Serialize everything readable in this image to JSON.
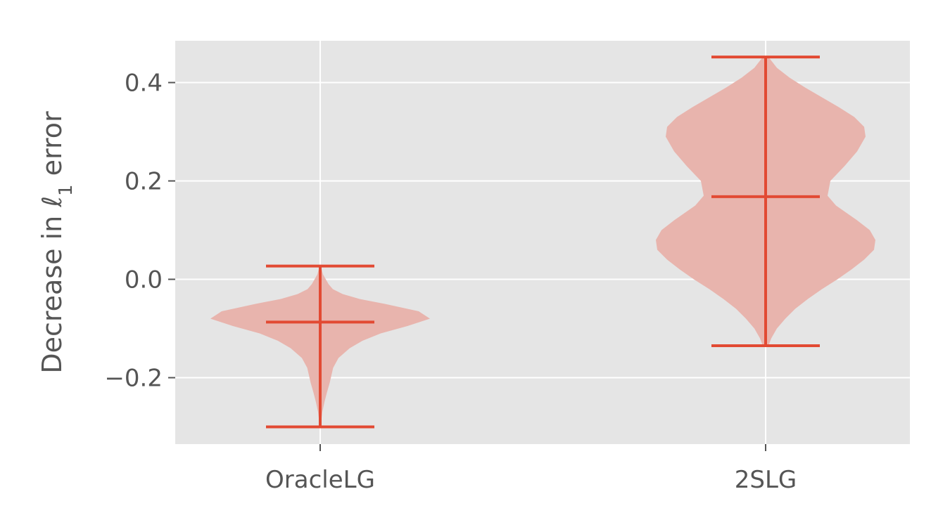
{
  "chart_data": {
    "type": "violin",
    "categories": [
      "OracleLG",
      "2SLG"
    ],
    "ylabel": "Decrease in ℓ",
    "ylabel_subscript": "1",
    "ylabel_suffix": " error",
    "ylim": [
      -0.335,
      0.485
    ],
    "yticks": [
      {
        "value": -0.2,
        "label": "−0.2"
      },
      {
        "value": 0.0,
        "label": "0.0"
      },
      {
        "value": 0.2,
        "label": "0.2"
      },
      {
        "value": 0.4,
        "label": "0.4"
      }
    ],
    "grid": true,
    "colors": {
      "background": "#e5e5e5",
      "grid": "#ffffff",
      "body": "#e8b4ad",
      "lines": "#e24a33",
      "text": "#555555"
    },
    "violins": [
      {
        "category": "OracleLG",
        "min": -0.3,
        "max": 0.027,
        "median": -0.087,
        "density": [
          [
            -0.3,
            0.004
          ],
          [
            -0.29,
            0.007
          ],
          [
            -0.27,
            0.015
          ],
          [
            -0.25,
            0.03
          ],
          [
            -0.23,
            0.048
          ],
          [
            -0.21,
            0.068
          ],
          [
            -0.195,
            0.08
          ],
          [
            -0.18,
            0.092
          ],
          [
            -0.16,
            0.13
          ],
          [
            -0.14,
            0.21
          ],
          [
            -0.125,
            0.3
          ],
          [
            -0.11,
            0.43
          ],
          [
            -0.095,
            0.62
          ],
          [
            -0.08,
            0.78
          ],
          [
            -0.065,
            0.7
          ],
          [
            -0.05,
            0.46
          ],
          [
            -0.04,
            0.28
          ],
          [
            -0.03,
            0.16
          ],
          [
            -0.02,
            0.09
          ],
          [
            -0.01,
            0.06
          ],
          [
            0.0,
            0.04
          ],
          [
            0.01,
            0.02
          ],
          [
            0.027,
            0.004
          ]
        ]
      },
      {
        "category": "2SLG",
        "min": -0.135,
        "max": 0.452,
        "median": 0.168,
        "density": [
          [
            -0.135,
            0.02
          ],
          [
            -0.12,
            0.04
          ],
          [
            -0.1,
            0.08
          ],
          [
            -0.08,
            0.14
          ],
          [
            -0.06,
            0.21
          ],
          [
            -0.04,
            0.3
          ],
          [
            -0.02,
            0.4
          ],
          [
            0.0,
            0.51
          ],
          [
            0.02,
            0.61
          ],
          [
            0.04,
            0.7
          ],
          [
            0.06,
            0.77
          ],
          [
            0.08,
            0.78
          ],
          [
            0.1,
            0.74
          ],
          [
            0.12,
            0.65
          ],
          [
            0.15,
            0.5
          ],
          [
            0.17,
            0.44
          ],
          [
            0.2,
            0.46
          ],
          [
            0.23,
            0.56
          ],
          [
            0.26,
            0.65
          ],
          [
            0.29,
            0.71
          ],
          [
            0.31,
            0.7
          ],
          [
            0.33,
            0.63
          ],
          [
            0.35,
            0.52
          ],
          [
            0.37,
            0.4
          ],
          [
            0.39,
            0.28
          ],
          [
            0.41,
            0.17
          ],
          [
            0.43,
            0.08
          ],
          [
            0.452,
            0.02
          ]
        ]
      }
    ]
  }
}
